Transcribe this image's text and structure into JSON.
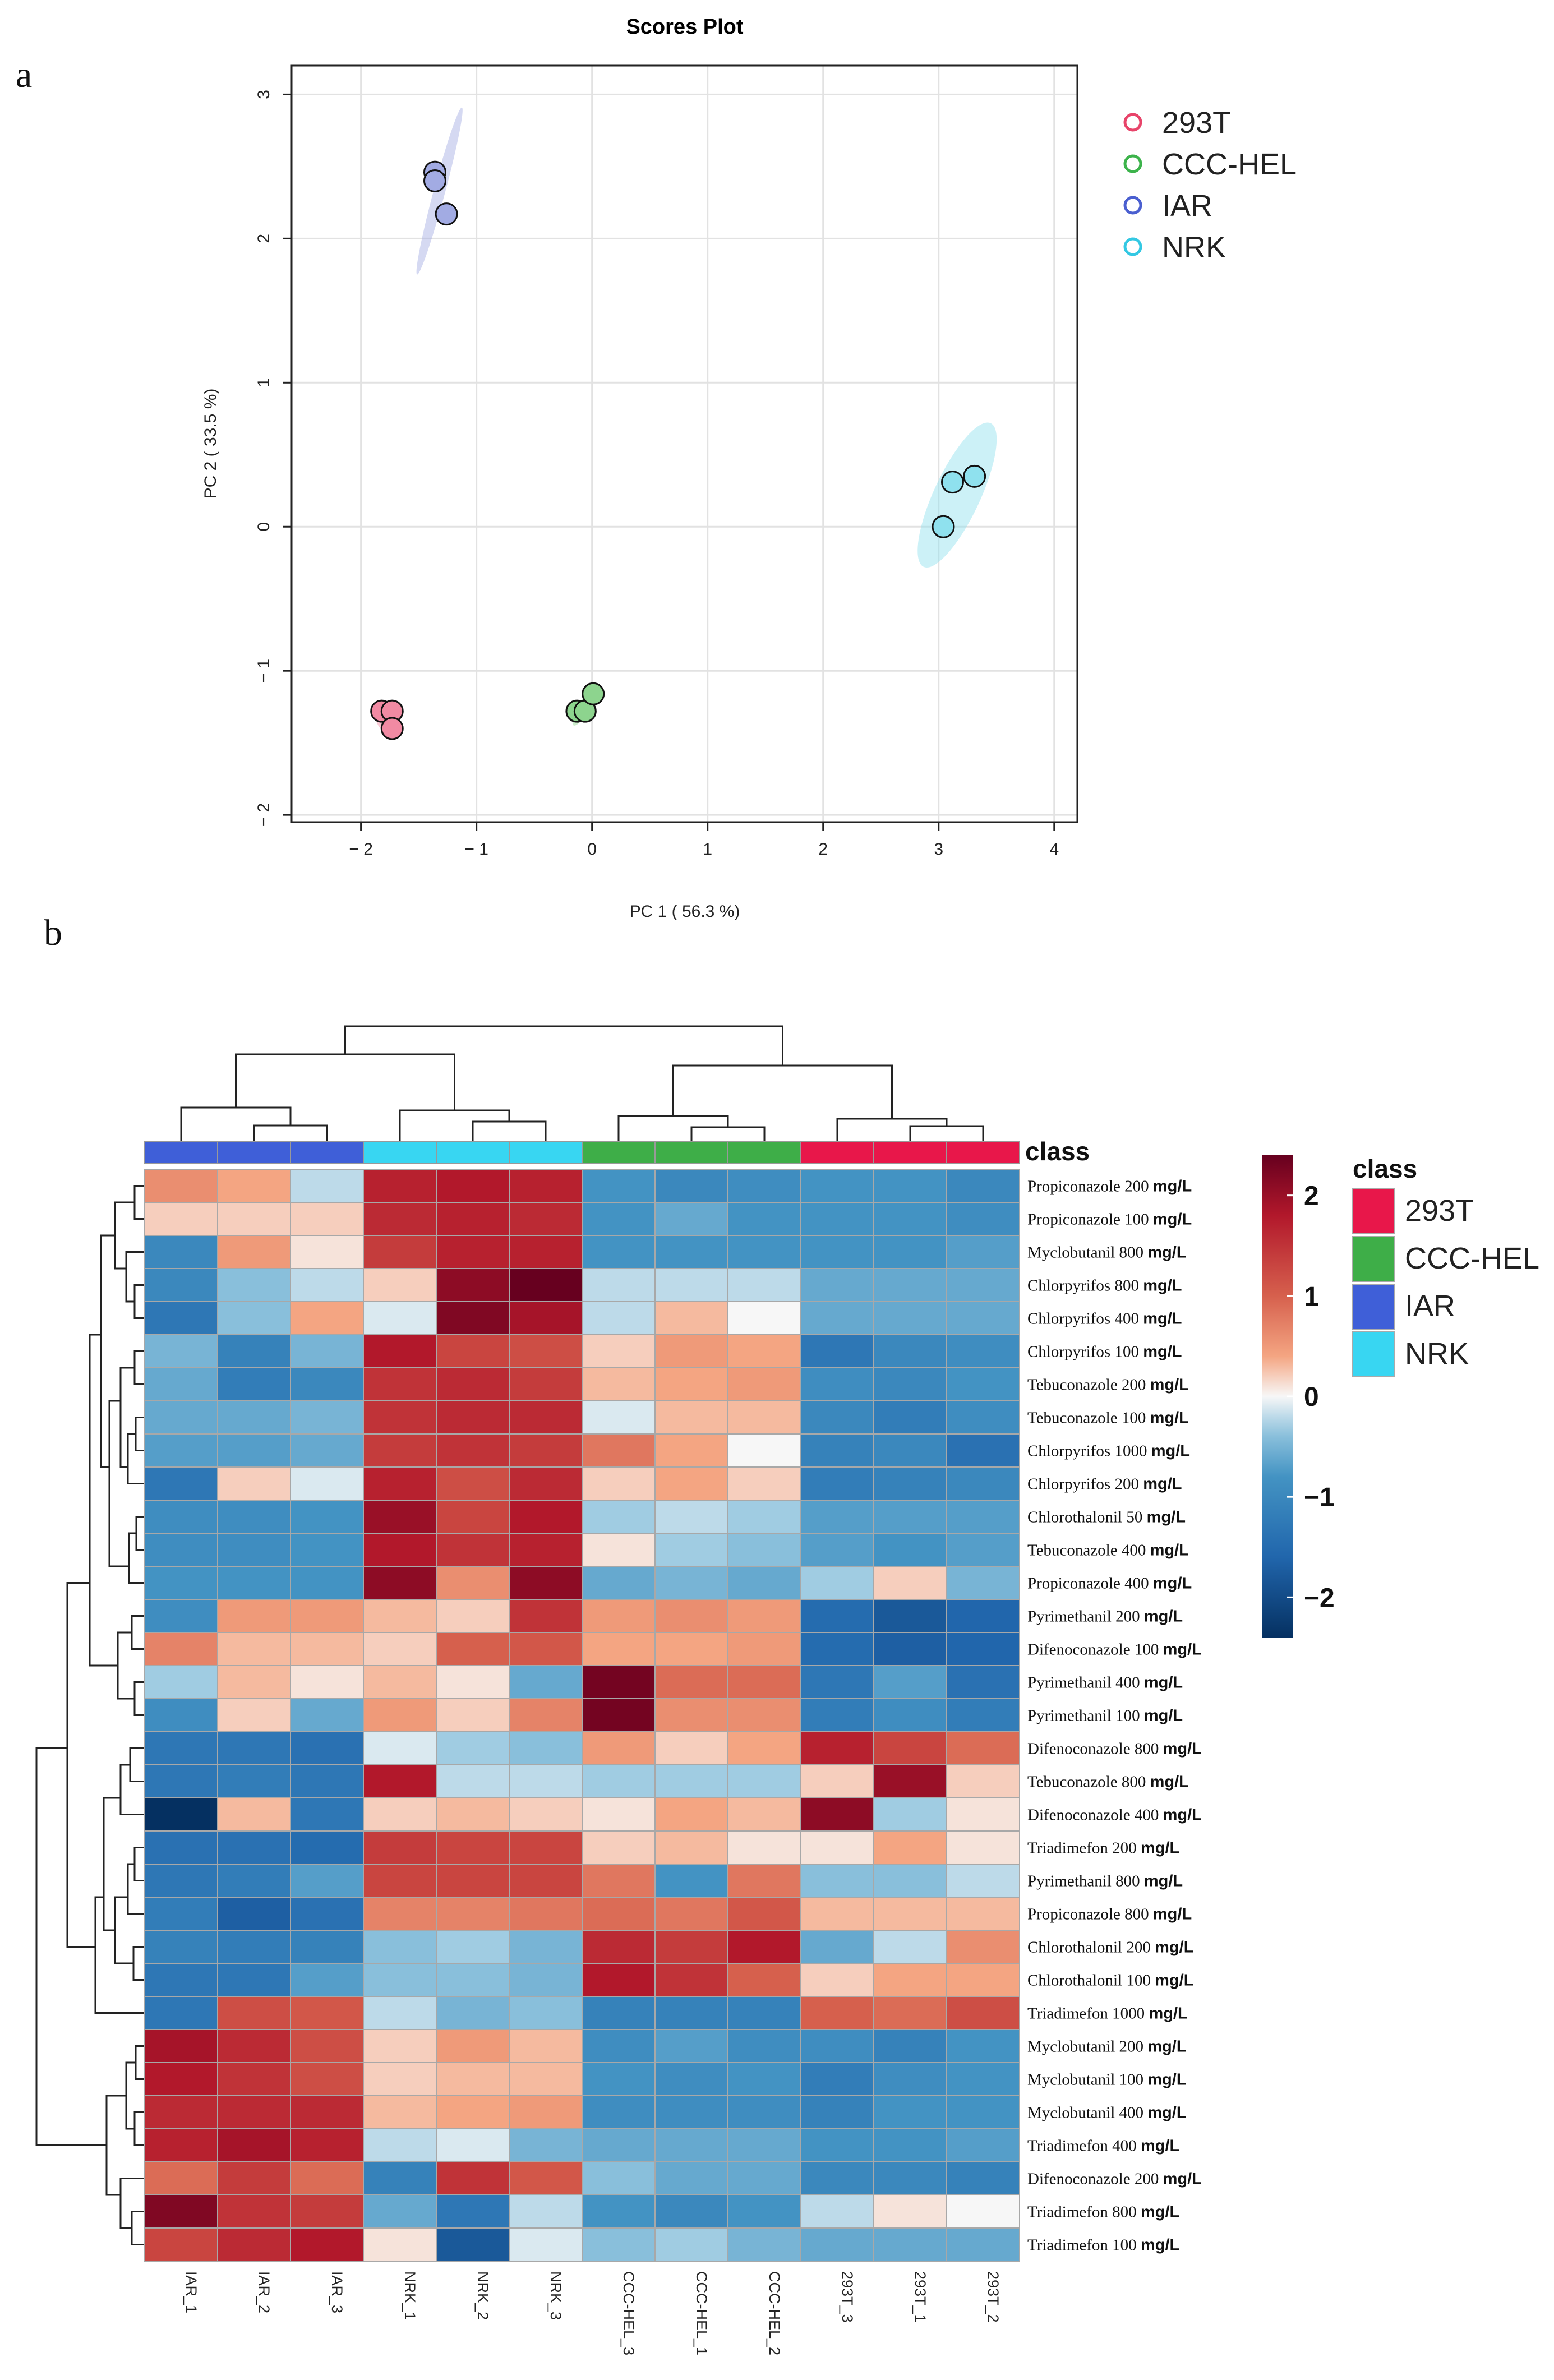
{
  "panels": {
    "a": {
      "label": "a"
    },
    "b": {
      "label": "b"
    }
  },
  "chart_data": [
    {
      "type": "scatter",
      "title": "Scores Plot",
      "xlabel": "PC 1 ( 56.3 %)",
      "ylabel": "PC 2 ( 33.5 %)",
      "xlim": [
        -2.6,
        4.2
      ],
      "ylim": [
        -2.05,
        3.2
      ],
      "xticks": [
        -2,
        -1,
        0,
        1,
        2,
        3,
        4
      ],
      "yticks": [
        -2,
        -1,
        0,
        1,
        2,
        3
      ],
      "xtick_labels": [
        "− 2",
        "− 1",
        "0",
        "1",
        "2",
        "3",
        "4"
      ],
      "ytick_labels": [
        "− 2",
        "− 1",
        "0",
        "1",
        "2",
        "3"
      ],
      "grid": true,
      "legend_position": "top-right",
      "series": [
        {
          "name": "293T",
          "color": "#e8446a",
          "fill": "#f18aa3",
          "points": [
            [
              -1.82,
              -1.28
            ],
            [
              -1.73,
              -1.28
            ],
            [
              -1.73,
              -1.4
            ]
          ],
          "ellipse": {
            "cx": -1.77,
            "cy": -1.32,
            "rx": 0.1,
            "ry": 0.1,
            "angle": 0
          }
        },
        {
          "name": "CCC-HEL",
          "color": "#3cb34b",
          "fill": "#8dd48e",
          "points": [
            [
              -0.13,
              -1.28
            ],
            [
              -0.06,
              -1.28
            ],
            [
              0.01,
              -1.16
            ]
          ],
          "ellipse": {
            "cx": -0.06,
            "cy": -1.24,
            "rx": 0.2,
            "ry": 0.04,
            "angle": -60
          }
        },
        {
          "name": "IAR",
          "color": "#4a5fd0",
          "fill": "#a2abe3",
          "points": [
            [
              -1.36,
              2.46
            ],
            [
              -1.36,
              2.4
            ],
            [
              -1.26,
              2.17
            ]
          ],
          "ellipse": {
            "cx": -1.32,
            "cy": 2.33,
            "rx": 0.05,
            "ry": 0.6,
            "angle": 15
          }
        },
        {
          "name": "NRK",
          "color": "#33c8e3",
          "fill": "#8fe1ee",
          "points": [
            [
              3.04,
              0.0
            ],
            [
              3.12,
              0.31
            ],
            [
              3.31,
              0.35
            ]
          ],
          "ellipse": {
            "cx": 3.16,
            "cy": 0.22,
            "rx": 0.2,
            "ry": 0.55,
            "angle": 25
          }
        }
      ]
    },
    {
      "type": "heatmap",
      "color_scale": {
        "min": -2.4,
        "max": 2.4,
        "ticks": [
          "2",
          "1",
          "0",
          "−1",
          "−2"
        ],
        "tick_values": [
          2,
          1,
          0,
          -1,
          -2
        ]
      },
      "class_title": "class",
      "class_legend": [
        {
          "name": "293T",
          "color": "#e8174a"
        },
        {
          "name": "CCC-HEL",
          "color": "#3eae48"
        },
        {
          "name": "IAR",
          "color": "#3f5fd8"
        },
        {
          "name": "NRK",
          "color": "#38d6f2"
        }
      ],
      "columns": [
        "IAR_1",
        "IAR_2",
        "IAR_3",
        "NRK_1",
        "NRK_2",
        "NRK_3",
        "CCC-HEL_3",
        "CCC-HEL_1",
        "CCC-HEL_2",
        "293T_3",
        "293T_1",
        "293T_2"
      ],
      "column_classes": [
        "IAR",
        "IAR",
        "IAR",
        "NRK",
        "NRK",
        "NRK",
        "CCC-HEL",
        "CCC-HEL",
        "CCC-HEL",
        "293T",
        "293T",
        "293T"
      ],
      "class_colors": {
        "IAR": "#3f5fd8",
        "NRK": "#38d6f2",
        "CCC-HEL": "#3eae48",
        "293T": "#e8174a"
      },
      "rows": [
        {
          "name": "Propiconazole 200",
          "unit": "mg/L",
          "values": [
            0.6,
            0.4,
            -0.2,
            1.7,
            1.8,
            1.7,
            -0.8,
            -1.0,
            -0.9,
            -0.8,
            -0.8,
            -1.0
          ]
        },
        {
          "name": "Propiconazole 100",
          "unit": "mg/L",
          "values": [
            0.2,
            0.2,
            0.2,
            1.6,
            1.7,
            1.6,
            -0.8,
            -0.6,
            -0.8,
            -0.8,
            -0.8,
            -0.9
          ]
        },
        {
          "name": "Myclobutanil 800",
          "unit": "mg/L",
          "values": [
            -1.0,
            0.5,
            0.1,
            1.4,
            1.7,
            1.7,
            -0.8,
            -0.8,
            -0.8,
            -0.8,
            -0.8,
            -0.7
          ]
        },
        {
          "name": "Chlorpyrifos 800",
          "unit": "mg/L",
          "values": [
            -1.0,
            -0.4,
            -0.2,
            0.2,
            2.1,
            2.4,
            -0.2,
            -0.2,
            -0.2,
            -0.6,
            -0.6,
            -0.6
          ]
        },
        {
          "name": "Chlorpyrifos 400",
          "unit": "mg/L",
          "values": [
            -1.3,
            -0.4,
            0.4,
            -0.1,
            2.2,
            1.9,
            -0.2,
            0.3,
            0.0,
            -0.6,
            -0.6,
            -0.6
          ]
        },
        {
          "name": "Chlorpyrifos 100",
          "unit": "mg/L",
          "values": [
            -0.5,
            -1.1,
            -0.5,
            1.8,
            1.3,
            1.2,
            0.2,
            0.5,
            0.4,
            -1.3,
            -1.0,
            -0.9
          ]
        },
        {
          "name": "Tebuconazole 200",
          "unit": "mg/L",
          "values": [
            -0.6,
            -1.2,
            -1.0,
            1.5,
            1.6,
            1.4,
            0.3,
            0.4,
            0.5,
            -0.9,
            -1.0,
            -0.8
          ]
        },
        {
          "name": "Tebuconazole 100",
          "unit": "mg/L",
          "values": [
            -0.6,
            -0.6,
            -0.5,
            1.5,
            1.6,
            1.6,
            -0.1,
            0.3,
            0.3,
            -1.0,
            -1.2,
            -0.9
          ]
        },
        {
          "name": "Chlorpyrifos 1000",
          "unit": "mg/L",
          "values": [
            -0.7,
            -0.7,
            -0.6,
            1.4,
            1.5,
            1.4,
            0.8,
            0.4,
            0.0,
            -1.1,
            -1.0,
            -1.4
          ]
        },
        {
          "name": "Chlorpyrifos 200",
          "unit": "mg/L",
          "values": [
            -1.3,
            0.2,
            -0.1,
            1.7,
            1.2,
            1.6,
            0.2,
            0.4,
            0.2,
            -1.2,
            -1.1,
            -1.0
          ]
        },
        {
          "name": "Chlorothalonil 50",
          "unit": "mg/L",
          "values": [
            -0.9,
            -0.9,
            -0.8,
            2.0,
            1.3,
            1.8,
            -0.3,
            -0.2,
            -0.3,
            -0.7,
            -0.7,
            -0.7
          ]
        },
        {
          "name": "Tebuconazole 400",
          "unit": "mg/L",
          "values": [
            -0.9,
            -0.9,
            -0.8,
            1.8,
            1.5,
            1.7,
            0.1,
            -0.3,
            -0.4,
            -0.7,
            -0.8,
            -0.7
          ]
        },
        {
          "name": "Propiconazole 400",
          "unit": "mg/L",
          "values": [
            -0.8,
            -0.8,
            -0.8,
            2.1,
            0.6,
            2.1,
            -0.6,
            -0.5,
            -0.6,
            -0.3,
            0.2,
            -0.5
          ]
        },
        {
          "name": "Pyrimethanil 200",
          "unit": "mg/L",
          "values": [
            -0.9,
            0.5,
            0.5,
            0.3,
            0.2,
            1.5,
            0.5,
            0.6,
            0.5,
            -1.5,
            -1.8,
            -1.6
          ]
        },
        {
          "name": "Difenoconazole 100",
          "unit": "mg/L",
          "values": [
            0.7,
            0.3,
            0.3,
            0.2,
            1.0,
            1.1,
            0.4,
            0.4,
            0.5,
            -1.5,
            -1.7,
            -1.6
          ]
        },
        {
          "name": "Pyrimethanil 400",
          "unit": "mg/L",
          "values": [
            -0.3,
            0.3,
            0.1,
            0.3,
            0.1,
            -0.6,
            2.3,
            0.9,
            0.9,
            -1.3,
            -0.7,
            -1.4
          ]
        },
        {
          "name": "Pyrimethanil 100",
          "unit": "mg/L",
          "values": [
            -0.9,
            0.2,
            -0.6,
            0.5,
            0.2,
            0.7,
            2.3,
            0.6,
            0.6,
            -1.2,
            -0.9,
            -1.2
          ]
        },
        {
          "name": "Difenoconazole 800",
          "unit": "mg/L",
          "values": [
            -1.3,
            -1.3,
            -1.4,
            -0.1,
            -0.3,
            -0.4,
            0.5,
            0.2,
            0.4,
            1.7,
            1.3,
            0.9
          ]
        },
        {
          "name": "Tebuconazole 800",
          "unit": "mg/L",
          "values": [
            -1.3,
            -1.2,
            -1.3,
            1.8,
            -0.2,
            -0.2,
            -0.3,
            -0.3,
            -0.3,
            0.2,
            2.0,
            0.2
          ]
        },
        {
          "name": "Difenoconazole 400",
          "unit": "mg/L",
          "values": [
            -2.4,
            0.3,
            -1.3,
            0.2,
            0.3,
            0.2,
            0.1,
            0.4,
            0.3,
            2.1,
            -0.3,
            0.1
          ]
        },
        {
          "name": "Triadimefon 200",
          "unit": "mg/L",
          "values": [
            -1.4,
            -1.4,
            -1.5,
            1.4,
            1.3,
            1.3,
            0.2,
            0.3,
            0.1,
            0.1,
            0.4,
            0.1
          ]
        },
        {
          "name": "Pyrimethanil 800",
          "unit": "mg/L",
          "values": [
            -1.3,
            -1.2,
            -0.7,
            1.3,
            1.3,
            1.3,
            0.8,
            -0.8,
            0.8,
            -0.4,
            -0.4,
            -0.2
          ]
        },
        {
          "name": "Propiconazole 800",
          "unit": "mg/L",
          "values": [
            -1.2,
            -1.7,
            -1.4,
            0.7,
            0.7,
            0.8,
            0.9,
            0.8,
            1.1,
            0.3,
            0.3,
            0.3
          ]
        },
        {
          "name": "Chlorothalonil 200",
          "unit": "mg/L",
          "values": [
            -1.1,
            -1.2,
            -1.1,
            -0.4,
            -0.3,
            -0.5,
            1.6,
            1.4,
            1.8,
            -0.6,
            -0.2,
            0.6
          ]
        },
        {
          "name": "Chlorothalonil 100",
          "unit": "mg/L",
          "values": [
            -1.3,
            -1.3,
            -0.7,
            -0.4,
            -0.4,
            -0.5,
            1.8,
            1.5,
            1.0,
            0.2,
            0.4,
            0.4
          ]
        },
        {
          "name": "Triadimefon 1000",
          "unit": "mg/L",
          "values": [
            -1.3,
            1.2,
            1.1,
            -0.2,
            -0.5,
            -0.4,
            -1.1,
            -1.1,
            -1.1,
            1.0,
            0.9,
            1.2
          ]
        },
        {
          "name": "Myclobutanil 200",
          "unit": "mg/L",
          "values": [
            1.9,
            1.6,
            1.2,
            0.2,
            0.5,
            0.3,
            -0.9,
            -0.7,
            -0.9,
            -0.9,
            -1.1,
            -0.8
          ]
        },
        {
          "name": "Myclobutanil 100",
          "unit": "mg/L",
          "values": [
            1.8,
            1.5,
            1.2,
            0.2,
            0.3,
            0.3,
            -0.8,
            -0.9,
            -0.8,
            -1.2,
            -0.9,
            -0.8
          ]
        },
        {
          "name": "Myclobutanil 400",
          "unit": "mg/L",
          "values": [
            1.6,
            1.6,
            1.6,
            0.3,
            0.4,
            0.5,
            -0.9,
            -0.9,
            -0.9,
            -1.1,
            -0.8,
            -0.8
          ]
        },
        {
          "name": "Triadimefon 400",
          "unit": "mg/L",
          "values": [
            1.7,
            1.9,
            1.7,
            -0.2,
            -0.1,
            -0.5,
            -0.6,
            -0.6,
            -0.6,
            -0.8,
            -0.8,
            -0.7
          ]
        },
        {
          "name": "Difenoconazole 200",
          "unit": "mg/L",
          "values": [
            0.9,
            1.4,
            0.9,
            -1.1,
            1.5,
            1.1,
            -0.4,
            -0.6,
            -0.6,
            -1.0,
            -1.0,
            -1.1
          ]
        },
        {
          "name": "Triadimefon 800",
          "unit": "mg/L",
          "values": [
            2.2,
            1.5,
            1.4,
            -0.6,
            -1.3,
            -0.2,
            -0.8,
            -1.0,
            -0.8,
            -0.2,
            0.1,
            0.0
          ]
        },
        {
          "name": "Triadimefon 100",
          "unit": "mg/L",
          "values": [
            1.3,
            1.6,
            1.8,
            0.1,
            -1.8,
            -0.1,
            -0.4,
            -0.3,
            -0.5,
            -0.6,
            -0.6,
            -0.6
          ]
        }
      ]
    }
  ]
}
